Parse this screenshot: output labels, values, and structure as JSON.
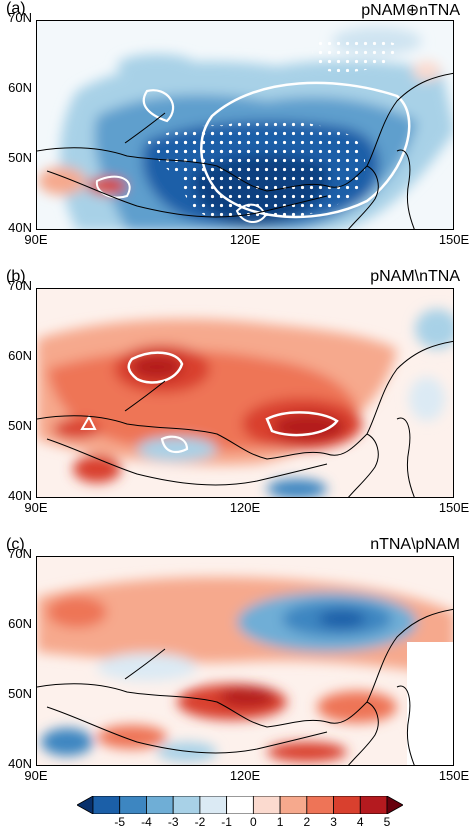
{
  "map": {
    "lat_ticks": [
      "70N",
      "60N",
      "50N",
      "40N"
    ],
    "lon_ticks": [
      "90E",
      "120E",
      "150E"
    ],
    "lon_range": [
      90,
      150
    ],
    "lat_range": [
      40,
      70
    ]
  },
  "panels": [
    {
      "label": "(a)",
      "title": "pNAM⊕nTNA"
    },
    {
      "label": "(b)",
      "title": "pNAM\\nTNA"
    },
    {
      "label": "(c)",
      "title": "nTNA\\pNAM"
    }
  ],
  "colorbar": {
    "labels": [
      "-5",
      "-4",
      "-3",
      "-2",
      "-1",
      "0",
      "1",
      "2",
      "3",
      "4",
      "5"
    ],
    "colors": [
      "#08306b",
      "#1b5fa8",
      "#3d86c1",
      "#6faed6",
      "#a8d1e7",
      "#dbeaf4",
      "#ffffff",
      "#fbdacf",
      "#f6a98d",
      "#ee7457",
      "#d9402e",
      "#b41a1f",
      "#67000d"
    ]
  }
}
